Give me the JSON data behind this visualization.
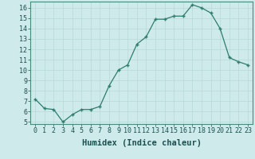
{
  "x": [
    0,
    1,
    2,
    3,
    4,
    5,
    6,
    7,
    8,
    9,
    10,
    11,
    12,
    13,
    14,
    15,
    16,
    17,
    18,
    19,
    20,
    21,
    22,
    23
  ],
  "y": [
    7.2,
    6.3,
    6.2,
    5.0,
    5.7,
    6.2,
    6.2,
    6.5,
    8.5,
    10.0,
    10.5,
    12.5,
    13.2,
    14.9,
    14.9,
    15.2,
    15.2,
    16.3,
    16.0,
    15.5,
    14.0,
    11.2,
    10.8,
    10.5
  ],
  "xlabel": "Humidex (Indice chaleur)",
  "xlim": [
    -0.5,
    23.5
  ],
  "ylim": [
    4.8,
    16.6
  ],
  "yticks": [
    5,
    6,
    7,
    8,
    9,
    10,
    11,
    12,
    13,
    14,
    15,
    16
  ],
  "xticks": [
    0,
    1,
    2,
    3,
    4,
    5,
    6,
    7,
    8,
    9,
    10,
    11,
    12,
    13,
    14,
    15,
    16,
    17,
    18,
    19,
    20,
    21,
    22,
    23
  ],
  "line_color": "#2e7d6e",
  "bg_color": "#ceeaea",
  "grid_color": "#b8d8d8",
  "xlabel_fontsize": 7.5,
  "tick_fontsize": 6
}
